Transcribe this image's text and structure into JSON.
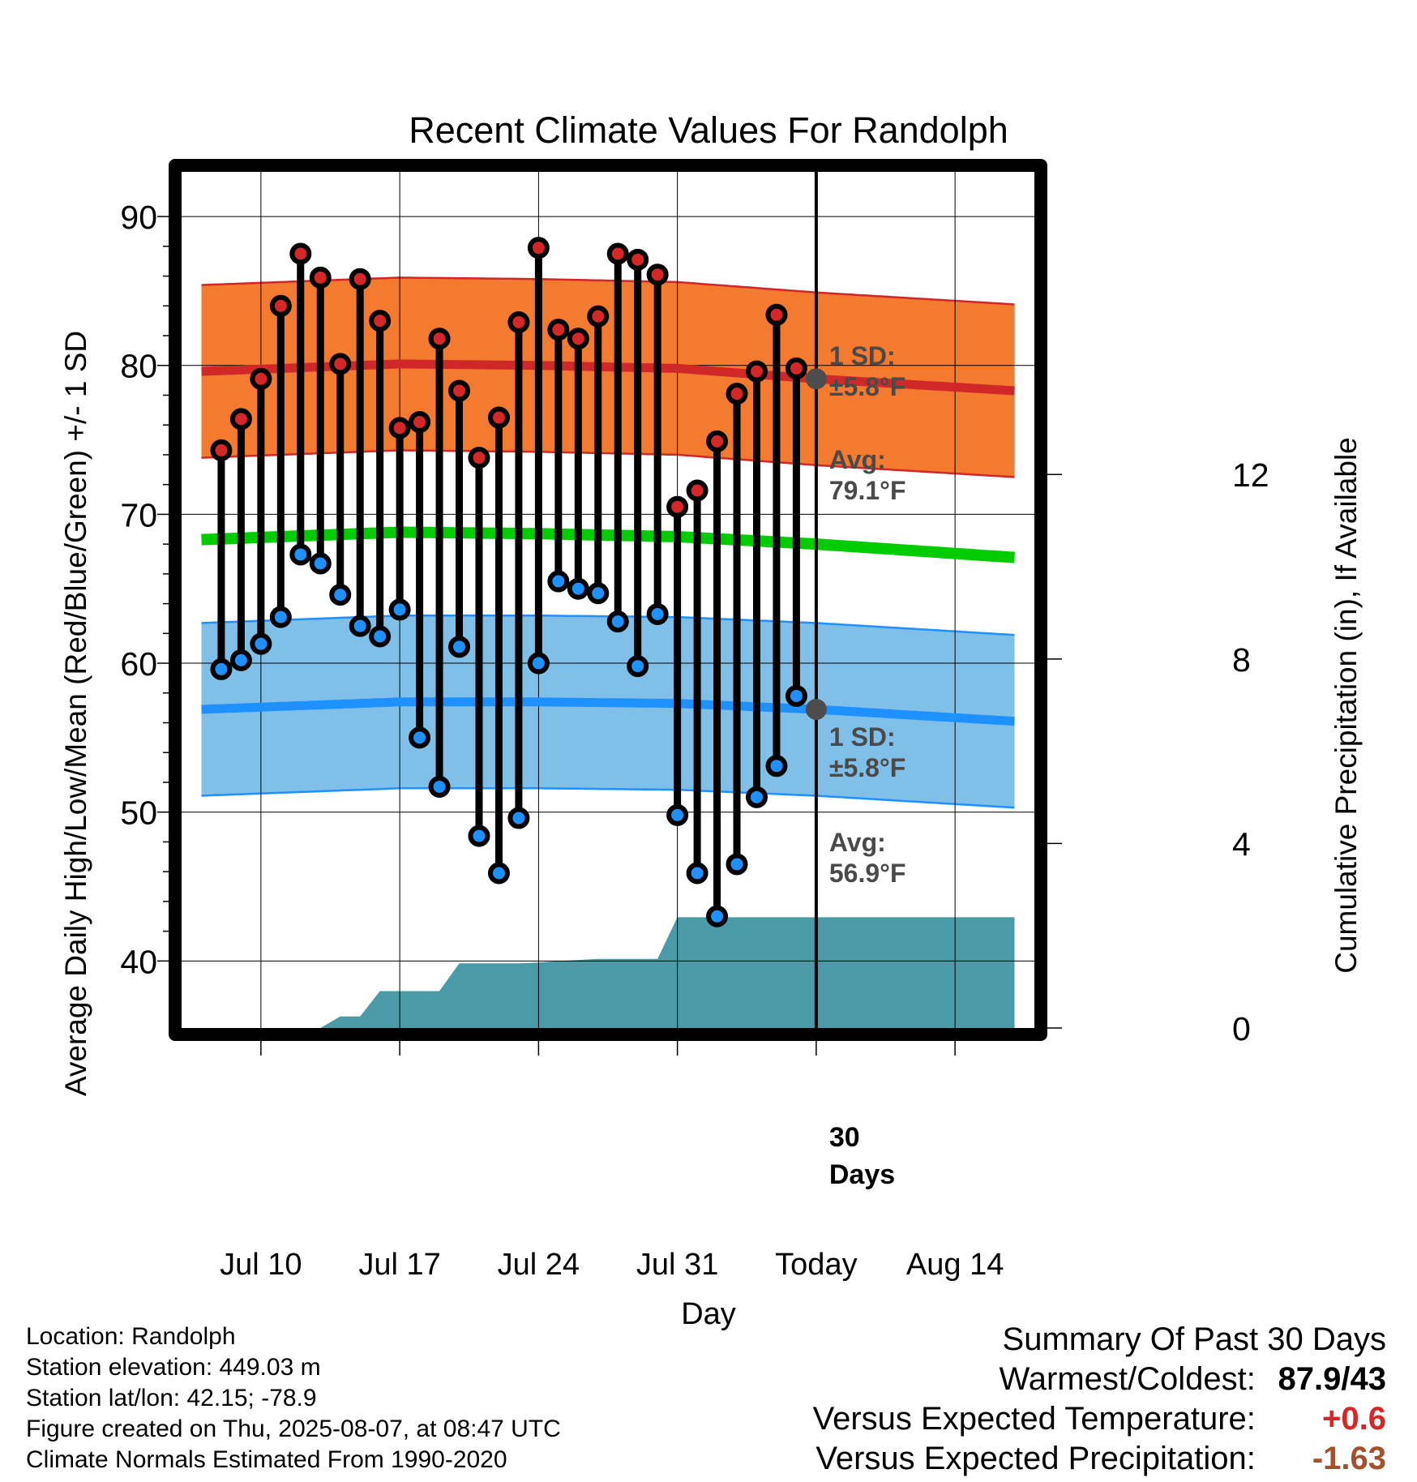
{
  "chart_data": {
    "type": "line",
    "title": "Recent Climate Values For Randolph",
    "xlabel": "Day",
    "ylabel": "Average Daily High/Low/Mean (Red/Blue/Green) +/- 1 SD",
    "y2label": "Cumulative Precipitation (in), If Available",
    "ylim": [
      35.5,
      93
    ],
    "y2lim": [
      0,
      18.56
    ],
    "xlim": [
      "2025-07-06",
      "2025-08-18"
    ],
    "y_ticks": [
      "40",
      "50",
      "60",
      "70",
      "80",
      "90"
    ],
    "y2_ticks": [
      "0",
      "4",
      "8",
      "12"
    ],
    "x_tick_labels": [
      {
        "date": "2025-07-10",
        "label": "Jul 10"
      },
      {
        "date": "2025-07-17",
        "label": "Jul 17"
      },
      {
        "date": "2025-07-24",
        "label": "Jul 24"
      },
      {
        "date": "2025-07-31",
        "label": "Jul 31"
      },
      {
        "date": "2025-08-07",
        "label": "Today"
      },
      {
        "date": "2025-08-14",
        "label": "Aug 14"
      }
    ],
    "grid": true,
    "today": "2025-08-07",
    "normals": {
      "x": [
        "2025-07-07",
        "2025-07-17",
        "2025-07-24",
        "2025-07-31",
        "2025-08-07",
        "2025-08-17"
      ],
      "high_mean": [
        79.6,
        80.1,
        80.0,
        79.8,
        79.1,
        78.3
      ],
      "low_mean": [
        56.9,
        57.4,
        57.4,
        57.3,
        56.9,
        56.1
      ],
      "avg_mean": [
        68.3,
        68.8,
        68.7,
        68.5,
        68.0,
        67.1
      ],
      "sd": 5.8,
      "colors": {
        "high_band": "#f47a30",
        "high_line": "#d02828",
        "low_band": "#80c0e8",
        "low_line": "#1e90ff",
        "mean_line": "#00cc00"
      }
    },
    "series": [
      {
        "name": "Daily High",
        "color": "#d62728",
        "x": [
          "2025-07-08",
          "2025-07-09",
          "2025-07-10",
          "2025-07-11",
          "2025-07-12",
          "2025-07-13",
          "2025-07-14",
          "2025-07-15",
          "2025-07-16",
          "2025-07-17",
          "2025-07-18",
          "2025-07-19",
          "2025-07-20",
          "2025-07-21",
          "2025-07-22",
          "2025-07-23",
          "2025-07-24",
          "2025-07-25",
          "2025-07-26",
          "2025-07-27",
          "2025-07-28",
          "2025-07-29",
          "2025-07-30",
          "2025-07-31",
          "2025-08-01",
          "2025-08-02",
          "2025-08-03",
          "2025-08-04",
          "2025-08-05",
          "2025-08-06"
        ],
        "values": [
          74.3,
          76.4,
          79.1,
          84.0,
          87.5,
          85.9,
          80.1,
          85.8,
          83.0,
          75.8,
          76.2,
          81.8,
          78.3,
          73.8,
          76.5,
          82.9,
          87.9,
          82.4,
          81.8,
          83.3,
          87.5,
          87.1,
          86.1,
          70.5,
          71.6,
          74.9,
          78.1,
          79.6,
          83.4,
          79.8
        ]
      },
      {
        "name": "Daily Low",
        "color": "#1e90ff",
        "x": [
          "2025-07-08",
          "2025-07-09",
          "2025-07-10",
          "2025-07-11",
          "2025-07-12",
          "2025-07-13",
          "2025-07-14",
          "2025-07-15",
          "2025-07-16",
          "2025-07-17",
          "2025-07-18",
          "2025-07-19",
          "2025-07-20",
          "2025-07-21",
          "2025-07-22",
          "2025-07-23",
          "2025-07-24",
          "2025-07-25",
          "2025-07-26",
          "2025-07-27",
          "2025-07-28",
          "2025-07-29",
          "2025-07-30",
          "2025-07-31",
          "2025-08-01",
          "2025-08-02",
          "2025-08-03",
          "2025-08-04",
          "2025-08-05",
          "2025-08-06"
        ],
        "values": [
          59.6,
          60.2,
          61.3,
          63.1,
          67.3,
          66.7,
          64.6,
          62.5,
          61.8,
          63.6,
          55.0,
          51.7,
          61.1,
          48.4,
          45.9,
          49.6,
          60.0,
          65.5,
          65.0,
          64.7,
          62.8,
          59.8,
          63.3,
          49.8,
          45.9,
          43.0,
          46.5,
          51.0,
          53.1,
          57.8
        ]
      }
    ],
    "precipitation": {
      "x": [
        "2025-07-08",
        "2025-07-11",
        "2025-07-12",
        "2025-07-13",
        "2025-07-14",
        "2025-07-15",
        "2025-07-16",
        "2025-07-17",
        "2025-07-18",
        "2025-07-19",
        "2025-07-20",
        "2025-07-23",
        "2025-07-24",
        "2025-07-25",
        "2025-07-27",
        "2025-07-30",
        "2025-07-31",
        "2025-08-07",
        "2025-08-17"
      ],
      "values": [
        0,
        0,
        0,
        0,
        0.25,
        0.25,
        0.8,
        0.8,
        0.8,
        0.8,
        1.4,
        1.4,
        1.42,
        1.45,
        1.5,
        1.5,
        2.4,
        2.4,
        2.4
      ],
      "color": "#4a9aa8"
    },
    "annotations": {
      "high_sd": "1 SD:\n±5.8°F",
      "high_avg": "Avg:\n79.1°F",
      "low_sd": "1 SD:\n±5.8°F",
      "low_avg": "Avg:\n56.9°F",
      "days": "30\nDays"
    }
  },
  "footer_left": [
    "Location: Randolph",
    "Station elevation: 449.03 m",
    "Station lat/lon: 42.15; -78.9",
    "Figure created on Thu, 2025-08-07, at 08:47 UTC",
    "Climate Normals Estimated From 1990-2020"
  ],
  "summary": {
    "title": "Summary Of Past 30 Days",
    "rows": [
      {
        "label": "Warmest/Coldest:",
        "value": "87.9/43",
        "color": "#000000"
      },
      {
        "label": "Versus Expected Temperature:",
        "value": "+0.6",
        "color": "#d62728"
      },
      {
        "label": "Versus Expected Precipitation:",
        "value": "-1.63",
        "color": "#a0522d"
      }
    ]
  }
}
